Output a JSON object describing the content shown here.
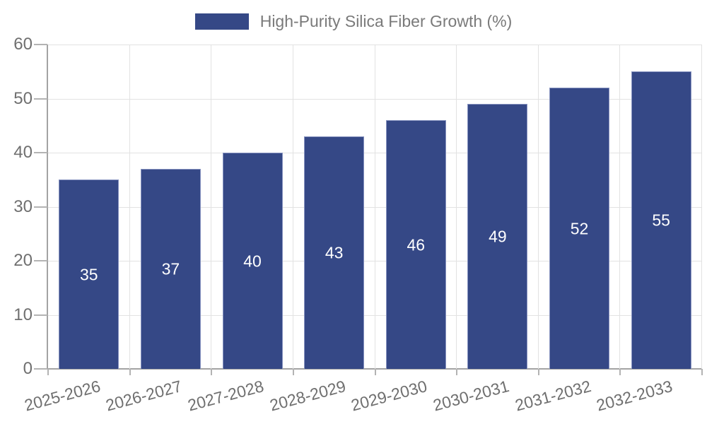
{
  "legend": {
    "label": "High-Purity Silica Fiber Growth (%)",
    "swatch_color": "#354886"
  },
  "chart_data": {
    "type": "bar",
    "title": "High-Purity Silica Fiber Growth (%)",
    "categories": [
      "2025-2026",
      "2026-2027",
      "2027-2028",
      "2028-2029",
      "2029-2030",
      "2030-2031",
      "2031-2032",
      "2032-2033"
    ],
    "values": [
      35,
      37,
      40,
      43,
      46,
      49,
      52,
      55
    ],
    "xlabel": "",
    "ylabel": "",
    "ylim": [
      0,
      60
    ],
    "yticks": [
      0,
      10,
      20,
      30,
      40,
      50,
      60
    ],
    "grid": true,
    "legend_position": "top-center",
    "bar_color": "#354886",
    "bar_edge_color": "#8793c0",
    "bar_label_color": "#ffffff",
    "grid_color": "#e2e2e2",
    "axis_color": "#a3a3a3",
    "tick_label_color": "#6f6f6f",
    "legend_text_color": "#7a7a7a",
    "background_color": "#ffffff"
  }
}
